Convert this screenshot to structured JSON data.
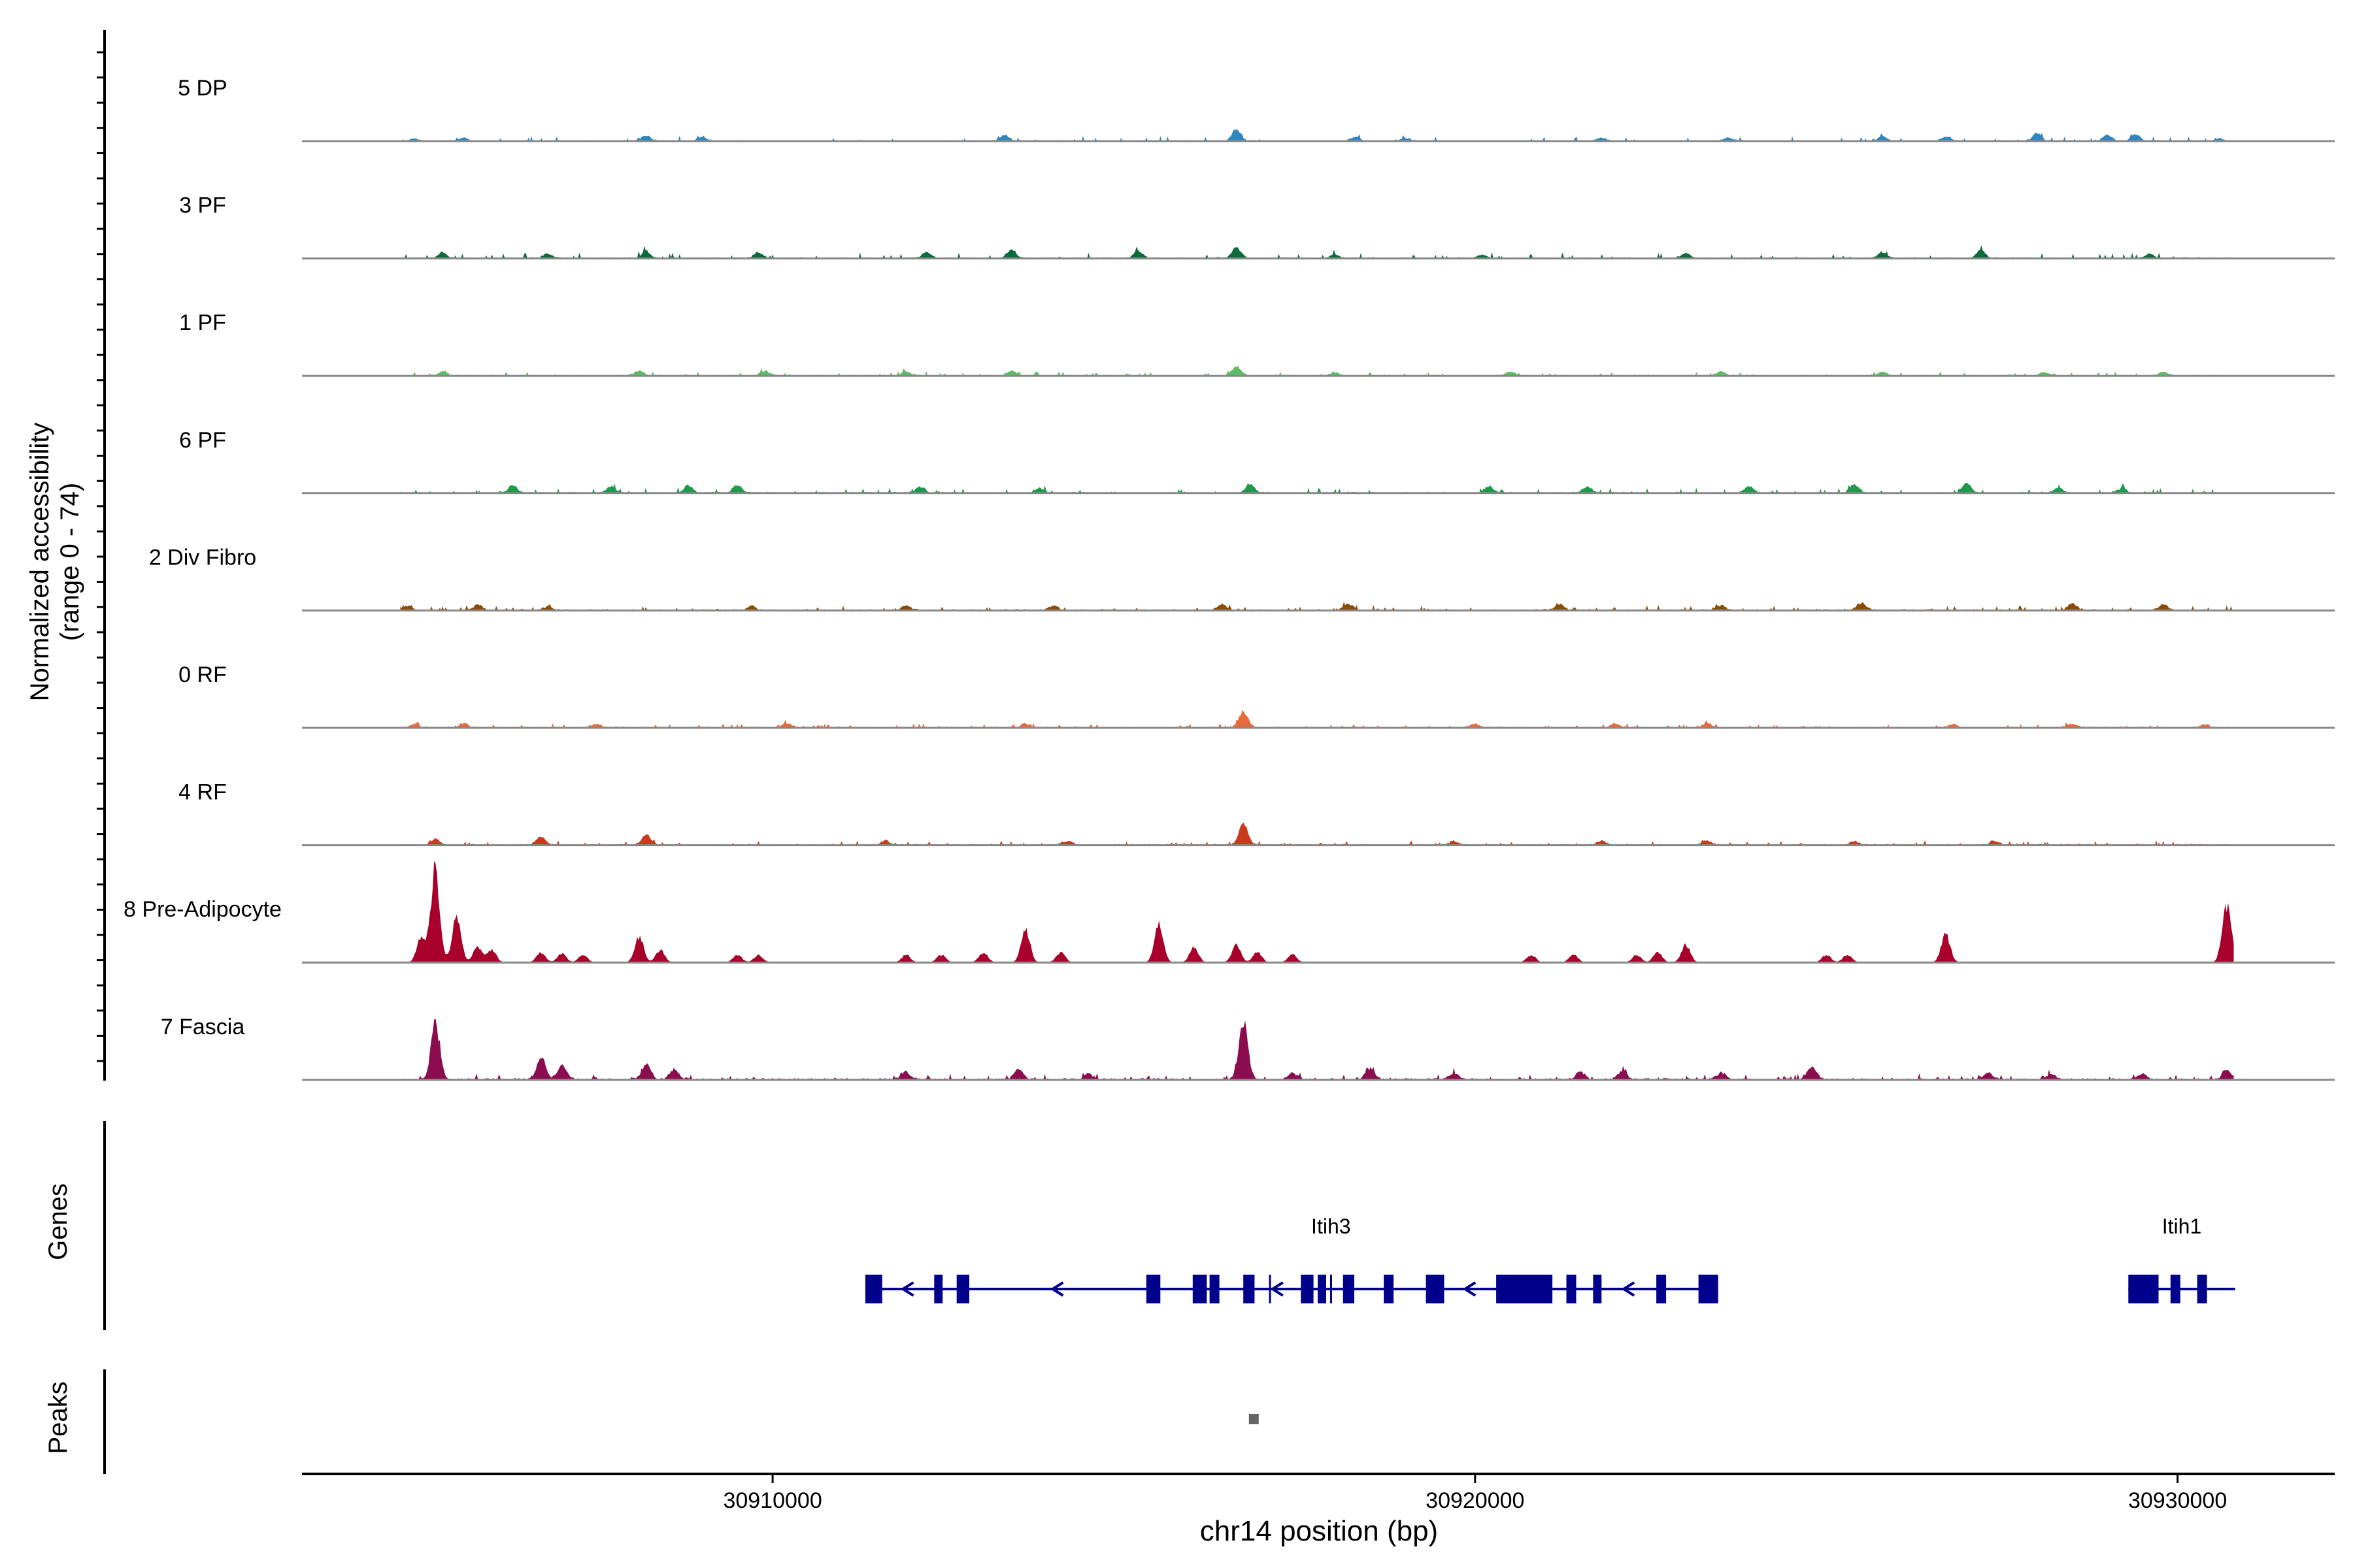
{
  "chart_data": {
    "type": "area",
    "title": "",
    "ylabel_line1": "Normalized accessibility",
    "ylabel_line2": "(range 0 - 74)",
    "xlabel": "chr14 position (bp)",
    "chromosome": "chr14",
    "xlim": [
      30903300,
      30932200
    ],
    "ylim": [
      0,
      74
    ],
    "x_ticks": [
      {
        "value": 30910000,
        "label": "30910000"
      },
      {
        "value": 30920000,
        "label": "30920000"
      },
      {
        "value": 30930000,
        "label": "30930000"
      }
    ],
    "data_range": [
      30904700,
      30930800
    ],
    "series": [
      {
        "name": "5 DP",
        "color": "#2E86C1",
        "base": 0.8,
        "noise": 3.0,
        "density": 0.55,
        "seed": 11,
        "peaks": [
          [
            30904900,
            1.8
          ],
          [
            30905600,
            2.5
          ],
          [
            30908200,
            4.5
          ],
          [
            30909000,
            3.0
          ],
          [
            30913300,
            4.6
          ],
          [
            30916600,
            9.0
          ],
          [
            30918300,
            3.2
          ],
          [
            30919000,
            2.0
          ],
          [
            30921800,
            2.5
          ],
          [
            30923600,
            2.8
          ],
          [
            30925800,
            3.6
          ],
          [
            30926700,
            3.4
          ],
          [
            30928000,
            5.5
          ],
          [
            30929000,
            4.6
          ],
          [
            30929400,
            5.2
          ],
          [
            30930600,
            2.0
          ]
        ]
      },
      {
        "name": "3 PF",
        "color": "#0B6B3A",
        "base": 0.9,
        "noise": 3.5,
        "density": 0.6,
        "seed": 23,
        "peaks": [
          [
            30905300,
            4.8
          ],
          [
            30906800,
            4.0
          ],
          [
            30908200,
            5.5
          ],
          [
            30909800,
            4.5
          ],
          [
            30912200,
            4.8
          ],
          [
            30913400,
            6.5
          ],
          [
            30915200,
            6.0
          ],
          [
            30916600,
            8.5
          ],
          [
            30918000,
            3.5
          ],
          [
            30920100,
            3.0
          ],
          [
            30923000,
            4.0
          ],
          [
            30925800,
            5.0
          ],
          [
            30927200,
            6.5
          ],
          [
            30929600,
            3.8
          ]
        ]
      },
      {
        "name": "1 PF",
        "color": "#5DBB63",
        "base": 0.8,
        "noise": 2.6,
        "density": 0.65,
        "seed": 37,
        "peaks": [
          [
            30905300,
            3.5
          ],
          [
            30908100,
            4.0
          ],
          [
            30909900,
            3.8
          ],
          [
            30911900,
            3.0
          ],
          [
            30913400,
            4.0
          ],
          [
            30916600,
            7.5
          ],
          [
            30918000,
            2.5
          ],
          [
            30920500,
            3.0
          ],
          [
            30923500,
            3.5
          ],
          [
            30925800,
            3.0
          ],
          [
            30928100,
            3.0
          ],
          [
            30929800,
            2.8
          ]
        ]
      },
      {
        "name": "6 PF",
        "color": "#1E9A4C",
        "base": 0.9,
        "noise": 3.2,
        "density": 0.65,
        "seed": 41,
        "peaks": [
          [
            30906300,
            6.0
          ],
          [
            30907700,
            5.0
          ],
          [
            30908800,
            5.5
          ],
          [
            30909500,
            6.5
          ],
          [
            30912100,
            4.5
          ],
          [
            30913800,
            4.0
          ],
          [
            30916800,
            7.5
          ],
          [
            30920200,
            5.0
          ],
          [
            30921600,
            4.5
          ],
          [
            30923900,
            5.0
          ],
          [
            30925400,
            6.5
          ],
          [
            30927000,
            7.5
          ],
          [
            30928300,
            4.0
          ],
          [
            30929200,
            3.5
          ]
        ]
      },
      {
        "name": "2 Div Fibro",
        "color": "#8B4A06",
        "base": 1.0,
        "noise": 3.0,
        "density": 0.75,
        "seed": 53,
        "peaks": [
          [
            30904800,
            3.5
          ],
          [
            30905800,
            3.8
          ],
          [
            30906800,
            3.0
          ],
          [
            30909700,
            3.2
          ],
          [
            30911900,
            3.8
          ],
          [
            30914000,
            3.0
          ],
          [
            30916400,
            4.0
          ],
          [
            30918200,
            5.0
          ],
          [
            30921200,
            5.0
          ],
          [
            30923500,
            4.0
          ],
          [
            30925500,
            5.5
          ],
          [
            30928500,
            5.0
          ],
          [
            30929800,
            4.5
          ]
        ]
      },
      {
        "name": "0 RF",
        "color": "#E8693A",
        "base": 0.9,
        "noise": 2.4,
        "density": 0.7,
        "seed": 67,
        "peaks": [
          [
            30904900,
            3.0
          ],
          [
            30905600,
            2.8
          ],
          [
            30907500,
            3.0
          ],
          [
            30910200,
            3.5
          ],
          [
            30913600,
            3.0
          ],
          [
            30916700,
            12.0
          ],
          [
            30920000,
            2.8
          ],
          [
            30922000,
            3.2
          ],
          [
            30923300,
            3.5
          ],
          [
            30926800,
            2.5
          ],
          [
            30928500,
            2.8
          ],
          [
            30930400,
            2.0
          ]
        ]
      },
      {
        "name": "4 RF",
        "color": "#CC3A1E",
        "base": 0.9,
        "noise": 2.6,
        "density": 0.7,
        "seed": 79,
        "peaks": [
          [
            30905200,
            5.0
          ],
          [
            30906700,
            7.0
          ],
          [
            30908200,
            8.0
          ],
          [
            30911600,
            3.0
          ],
          [
            30914200,
            3.0
          ],
          [
            30916700,
            17.0
          ],
          [
            30919700,
            3.0
          ],
          [
            30921800,
            3.5
          ],
          [
            30923300,
            3.5
          ],
          [
            30925400,
            3.0
          ],
          [
            30927400,
            3.0
          ]
        ]
      },
      {
        "name": "8 Pre-Adipocyte",
        "color": "#A8002A",
        "base": 0.0,
        "noise": 0.0,
        "density": 0.0,
        "seed": 83,
        "peaks": [
          [
            30905200,
            74
          ],
          [
            30905000,
            20
          ],
          [
            30905500,
            35
          ],
          [
            30905800,
            12
          ],
          [
            30906000,
            10
          ],
          [
            30906700,
            8
          ],
          [
            30907000,
            7
          ],
          [
            30907300,
            6
          ],
          [
            30908100,
            20
          ],
          [
            30908400,
            10
          ],
          [
            30909500,
            6
          ],
          [
            30909800,
            6
          ],
          [
            30911900,
            6
          ],
          [
            30912400,
            6
          ],
          [
            30913000,
            8
          ],
          [
            30913600,
            25
          ],
          [
            30914100,
            8
          ],
          [
            30915500,
            30
          ],
          [
            30916000,
            12
          ],
          [
            30916600,
            14
          ],
          [
            30916900,
            8
          ],
          [
            30917400,
            6
          ],
          [
            30920800,
            6
          ],
          [
            30921400,
            6
          ],
          [
            30922300,
            6
          ],
          [
            30922600,
            8
          ],
          [
            30923000,
            14
          ],
          [
            30925000,
            6
          ],
          [
            30925300,
            6
          ],
          [
            30926700,
            22
          ],
          [
            30930700,
            46
          ]
        ]
      },
      {
        "name": "7 Fascia",
        "color": "#8B0D4F",
        "base": 1.2,
        "noise": 3.5,
        "density": 0.85,
        "seed": 97,
        "peaks": [
          [
            30905200,
            43
          ],
          [
            30906700,
            16
          ],
          [
            30907000,
            10
          ],
          [
            30908200,
            12
          ],
          [
            30908600,
            8
          ],
          [
            30911900,
            6
          ],
          [
            30913500,
            8
          ],
          [
            30914500,
            4
          ],
          [
            30916700,
            45
          ],
          [
            30917400,
            5
          ],
          [
            30918500,
            9
          ],
          [
            30919700,
            5
          ],
          [
            30921500,
            6
          ],
          [
            30922100,
            7
          ],
          [
            30923500,
            5
          ],
          [
            30924800,
            10
          ],
          [
            30927300,
            5
          ],
          [
            30928200,
            4
          ],
          [
            30929500,
            4
          ],
          [
            30930700,
            7
          ]
        ]
      }
    ],
    "genes": [
      {
        "name": "Itih3",
        "start": 30911320,
        "end": 30923460,
        "strand": "-",
        "exons": [
          [
            30911320,
            30911560
          ],
          [
            30912300,
            30912420
          ],
          [
            30912620,
            30912800
          ],
          [
            30915320,
            30915520
          ],
          [
            30915980,
            30916180
          ],
          [
            30916220,
            30916360
          ],
          [
            30916700,
            30916860
          ],
          [
            30917520,
            30917700
          ],
          [
            30917760,
            30917880
          ],
          [
            30918120,
            30918280
          ],
          [
            30918700,
            30918840
          ],
          [
            30919300,
            30919560
          ],
          [
            30920300,
            30921100
          ],
          [
            30921300,
            30921440
          ],
          [
            30921680,
            30921800
          ],
          [
            30922580,
            30922720
          ],
          [
            30923180,
            30923460
          ]
        ],
        "ticks": [
          30917080,
          30917950
        ]
      },
      {
        "name": "Itih1",
        "start": 30929300,
        "end": 30930820,
        "strand": "-",
        "exons": [
          [
            30929300,
            30929730
          ],
          [
            30929900,
            30930040
          ],
          [
            30930280,
            30930420
          ]
        ],
        "ticks": []
      }
    ],
    "peaks_track": [
      [
        30916780,
        30916920
      ]
    ],
    "track_labels": {
      "genes": "Genes",
      "peaks": "Peaks"
    }
  }
}
